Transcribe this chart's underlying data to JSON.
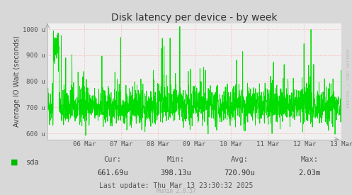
{
  "title": "Disk latency per device - by week",
  "ylabel": "Average IO Wait (seconds)",
  "y_tick_labels": [
    "600 u",
    "700 u",
    "800 u",
    "900 u",
    "1000 u"
  ],
  "y_tick_values": [
    600,
    700,
    800,
    900,
    1000
  ],
  "ylim": [
    577,
    1022
  ],
  "x_tick_labels": [
    "06 Mar",
    "07 Mar",
    "08 Mar",
    "09 Mar",
    "10 Mar",
    "11 Mar",
    "12 Mar",
    "13 Mar"
  ],
  "line_color": "#00dd00",
  "bg_color": "#d8d8d8",
  "plot_bg_color": "#f0f0f0",
  "grid_color_h": "#ff9999",
  "grid_color_v": "#ff9999",
  "legend_label": "sda",
  "legend_color": "#00bb00",
  "footer_cur": "Cur:",
  "footer_cur_val": "661.69u",
  "footer_min": "Min:",
  "footer_min_val": "398.13u",
  "footer_avg": "Avg:",
  "footer_avg_val": "720.90u",
  "footer_max": "Max:",
  "footer_max_val": "2.03m",
  "footer_lastupdate": "Last update: Thu Mar 13 23:30:32 2025",
  "footer_munin": "Munin 2.0.57",
  "watermark": "RRDTOOL / TOBI OETIKER",
  "seed": 42,
  "n_points": 2016
}
